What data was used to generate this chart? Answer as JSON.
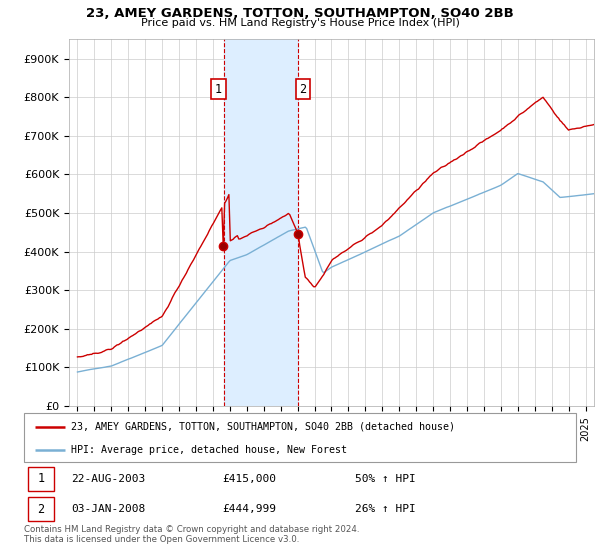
{
  "title": "23, AMEY GARDENS, TOTTON, SOUTHAMPTON, SO40 2BB",
  "subtitle": "Price paid vs. HM Land Registry's House Price Index (HPI)",
  "ylabel_ticks": [
    "£0",
    "£100K",
    "£200K",
    "£300K",
    "£400K",
    "£500K",
    "£600K",
    "£700K",
    "£800K",
    "£900K"
  ],
  "ytick_values": [
    0,
    100000,
    200000,
    300000,
    400000,
    500000,
    600000,
    700000,
    800000,
    900000
  ],
  "ylim": [
    0,
    950000
  ],
  "xlim_start": 1994.5,
  "xlim_end": 2025.5,
  "red_line_color": "#cc0000",
  "blue_line_color": "#7ab0d4",
  "highlight_fill_color": "#ddeeff",
  "highlight_border_color": "#cc0000",
  "sale1_x": 2003.64,
  "sale1_y": 415000,
  "sale2_x": 2008.01,
  "sale2_y": 444999,
  "legend_label1": "23, AMEY GARDENS, TOTTON, SOUTHAMPTON, SO40 2BB (detached house)",
  "legend_label2": "HPI: Average price, detached house, New Forest",
  "table_row1": [
    "1",
    "22-AUG-2003",
    "£415,000",
    "50% ↑ HPI"
  ],
  "table_row2": [
    "2",
    "03-JAN-2008",
    "£444,999",
    "26% ↑ HPI"
  ],
  "footnote": "Contains HM Land Registry data © Crown copyright and database right 2024.\nThis data is licensed under the Open Government Licence v3.0.",
  "background_color": "#ffffff",
  "grid_color": "#cccccc"
}
